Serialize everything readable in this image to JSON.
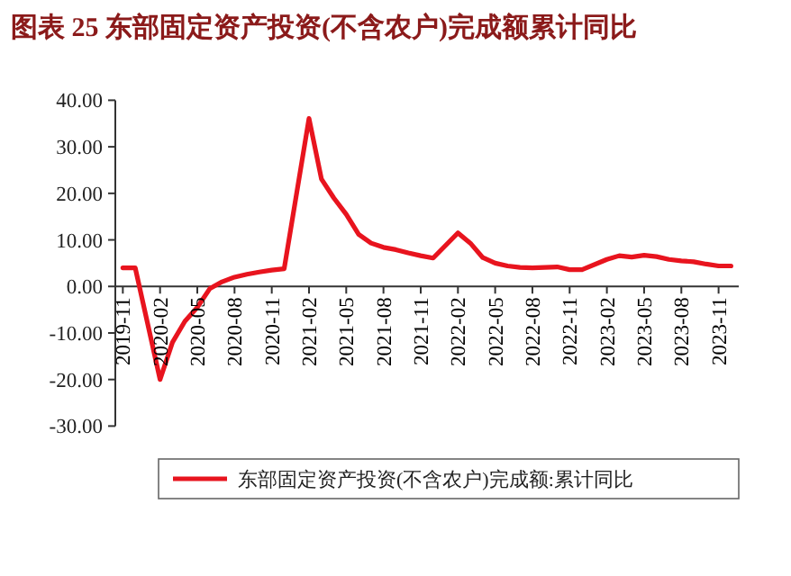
{
  "chart_data": {
    "type": "line",
    "title": "图表 25   东部固定资产投资(不含农户)完成额累计同比",
    "x": [
      "2019-11",
      "2019-12",
      "2020-02",
      "2020-03",
      "2020-04",
      "2020-05",
      "2020-06",
      "2020-07",
      "2020-08",
      "2020-09",
      "2020-10",
      "2020-11",
      "2020-12",
      "2021-02",
      "2021-03",
      "2021-04",
      "2021-05",
      "2021-06",
      "2021-07",
      "2021-08",
      "2021-09",
      "2021-10",
      "2021-11",
      "2021-12",
      "2022-02",
      "2022-03",
      "2022-04",
      "2022-05",
      "2022-06",
      "2022-07",
      "2022-08",
      "2022-09",
      "2022-10",
      "2022-11",
      "2022-12",
      "2023-02",
      "2023-03",
      "2023-04",
      "2023-05",
      "2023-06",
      "2023-07",
      "2023-08",
      "2023-09",
      "2023-10",
      "2023-11",
      "2023-12"
    ],
    "series": [
      {
        "name": "东部固定资产投资(不含农户)完成额:累计同比",
        "color": "#e8141e",
        "values": [
          4.0,
          4.0,
          -20.0,
          -12.0,
          -7.5,
          -4.5,
          -0.5,
          1.0,
          2.0,
          2.6,
          3.1,
          3.5,
          3.8,
          36.1,
          23.1,
          19.0,
          15.5,
          11.2,
          9.3,
          8.4,
          7.9,
          7.2,
          6.6,
          6.1,
          11.5,
          9.3,
          6.2,
          5.0,
          4.4,
          4.1,
          4.0,
          4.1,
          4.2,
          3.6,
          3.6,
          5.8,
          6.6,
          6.3,
          6.7,
          6.4,
          5.8,
          5.5,
          5.3,
          4.8,
          4.4,
          4.4
        ]
      }
    ],
    "xlim": [
      "2019-10-13",
      "2023-12-20"
    ],
    "xticks": [
      "2019-11",
      "2020-02",
      "2020-05",
      "2020-08",
      "2020-11",
      "2021-02",
      "2021-05",
      "2021-08",
      "2021-11",
      "2022-02",
      "2022-05",
      "2022-08",
      "2022-11",
      "2023-02",
      "2023-05",
      "2023-08",
      "2023-11"
    ],
    "ylim": [
      -30,
      40
    ],
    "yticks": [
      {
        "value": 40,
        "label": "40.00"
      },
      {
        "value": 30,
        "label": "30.00"
      },
      {
        "value": 20,
        "label": "20.00"
      },
      {
        "value": 10,
        "label": "10.00"
      },
      {
        "value": 0,
        "label": "0.00"
      },
      {
        "value": -10,
        "label": "-10.00"
      },
      {
        "value": -20,
        "label": "-20.00"
      },
      {
        "value": -30,
        "label": "-30.00"
      }
    ],
    "legend": "bottom"
  }
}
